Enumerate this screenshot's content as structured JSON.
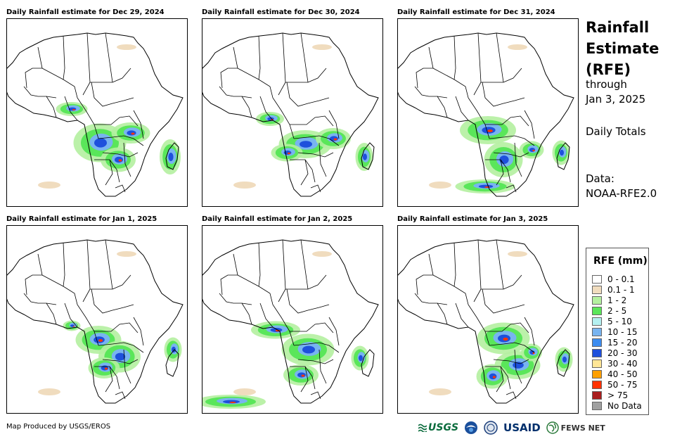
{
  "panels": [
    {
      "title": "Daily Rainfall estimate for Dec 29, 2024"
    },
    {
      "title": "Daily Rainfall estimate for Dec 30, 2024"
    },
    {
      "title": "Daily Rainfall estimate for Dec 31, 2024"
    },
    {
      "title": "Daily Rainfall estimate for Jan 1, 2025"
    },
    {
      "title": "Daily Rainfall estimate for Jan 2, 2025"
    },
    {
      "title": "Daily Rainfall estimate for Jan 3, 2025"
    }
  ],
  "side": {
    "title_line1": "Rainfall",
    "title_line2": "Estimate",
    "title_line3": "(RFE)",
    "through": "through",
    "date": "Jan 3, 2025",
    "totals": "Daily Totals",
    "data_label": "Data:",
    "data_source": "NOAA-RFE2.0"
  },
  "legend": {
    "title": "RFE (mm)",
    "items": [
      {
        "label": "0 - 0.1",
        "color": "#ffffff"
      },
      {
        "label": "0.1 - 1",
        "color": "#f0dcbe"
      },
      {
        "label": "1 - 2",
        "color": "#b4f0a0"
      },
      {
        "label": "2 - 5",
        "color": "#5ae65a"
      },
      {
        "label": "5 - 10",
        "color": "#b4f0f0"
      },
      {
        "label": "10 - 15",
        "color": "#78b4f0"
      },
      {
        "label": "15 - 20",
        "color": "#3c8cf0"
      },
      {
        "label": "20 - 30",
        "color": "#1e50dc"
      },
      {
        "label": "30 - 40",
        "color": "#ffe696"
      },
      {
        "label": "40 - 50",
        "color": "#ffa000"
      },
      {
        "label": "50 - 75",
        "color": "#ff3200"
      },
      {
        "label": "> 75",
        "color": "#aa1e1e"
      },
      {
        "label": "No Data",
        "color": "#a0a0a0"
      }
    ]
  },
  "footer": {
    "credit": "Map Produced by USGS/EROS",
    "logos": {
      "usgs": "USGS",
      "usaid": "USAID",
      "fews": "FEWS NET"
    }
  }
}
